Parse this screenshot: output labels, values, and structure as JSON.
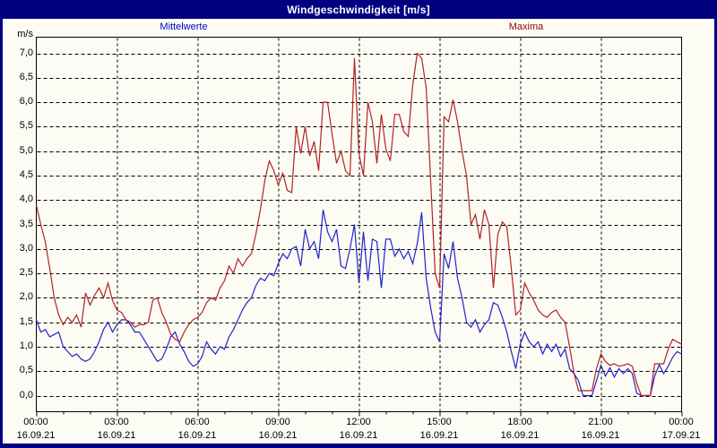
{
  "window": {
    "title": "Windgeschwindigkeit [m/s]"
  },
  "legend": {
    "mean_label": "Mittelwerte",
    "max_label": "Maxima"
  },
  "axis": {
    "unit_label": "m/s"
  },
  "colors": {
    "frame_navy": "#000080",
    "title_text": "#ffffff",
    "mean_label_text": "#0000cc",
    "max_label_text": "#990000",
    "mean_line": "#2222cc",
    "max_line": "#b22222",
    "grid": "#000000",
    "background": "#fcfcf4"
  },
  "chart_data": {
    "type": "line",
    "title": "Windgeschwindigkeit [m/s]",
    "ylabel": "m/s",
    "ylim": [
      0.0,
      7.0
    ],
    "y_tick_step": 0.5,
    "y_tick_labels": [
      "7,0",
      "6,5",
      "6,0",
      "5,5",
      "5,0",
      "4,5",
      "4,0",
      "3,5",
      "3,0",
      "2,5",
      "2,0",
      "1,5",
      "1,0",
      "0,5",
      "0,0"
    ],
    "x_start": "16.09.21 00:00",
    "x_end": "17.09.21 00:00",
    "sample_interval_minutes": 10,
    "grid": "dashed; horizontal every 0.5 m/s, vertical every 3 h, hourly minor ticks on x-axis",
    "legend_position": "top, outside plot",
    "x_ticks": [
      {
        "time": "00:00",
        "date": "16.09.21"
      },
      {
        "time": "03:00",
        "date": "16.09.21"
      },
      {
        "time": "06:00",
        "date": "16.09.21"
      },
      {
        "time": "09:00",
        "date": "16.09.21"
      },
      {
        "time": "12:00",
        "date": "16.09.21"
      },
      {
        "time": "15:00",
        "date": "16.09.21"
      },
      {
        "time": "18:00",
        "date": "16.09.21"
      },
      {
        "time": "21:00",
        "date": "16.09.21"
      },
      {
        "time": "00:00",
        "date": "17.09.21"
      }
    ],
    "series": [
      {
        "name": "Mittelwerte",
        "color": "#2222cc",
        "values": [
          1.55,
          1.3,
          1.35,
          1.2,
          1.25,
          1.3,
          1.0,
          0.9,
          0.8,
          0.85,
          0.75,
          0.7,
          0.75,
          0.9,
          1.1,
          1.35,
          1.5,
          1.3,
          1.45,
          1.55,
          1.55,
          1.45,
          1.3,
          1.3,
          1.15,
          1.0,
          0.85,
          0.7,
          0.75,
          0.95,
          1.2,
          1.3,
          1.05,
          0.9,
          0.7,
          0.6,
          0.65,
          0.8,
          1.1,
          0.95,
          0.85,
          1.0,
          0.95,
          1.2,
          1.35,
          1.55,
          1.75,
          1.9,
          2.0,
          2.25,
          2.4,
          2.35,
          2.5,
          2.45,
          2.7,
          2.9,
          2.8,
          3.0,
          3.05,
          2.65,
          3.4,
          3.0,
          3.15,
          2.8,
          3.8,
          3.35,
          3.15,
          3.4,
          2.65,
          2.6,
          3.0,
          3.5,
          2.3,
          3.35,
          2.35,
          3.2,
          3.15,
          2.2,
          3.2,
          3.2,
          2.85,
          3.0,
          2.8,
          2.95,
          2.7,
          3.1,
          3.75,
          2.4,
          1.8,
          1.3,
          1.1,
          2.9,
          2.6,
          3.15,
          2.4,
          2.0,
          1.5,
          1.4,
          1.55,
          1.3,
          1.45,
          1.55,
          1.9,
          1.85,
          1.6,
          1.3,
          0.9,
          0.55,
          1.05,
          1.3,
          1.1,
          1.0,
          1.1,
          0.85,
          1.05,
          0.9,
          1.05,
          0.8,
          0.95,
          0.55,
          0.45,
          0.3,
          0.0,
          0.0,
          0.0,
          0.3,
          0.62,
          0.4,
          0.57,
          0.38,
          0.55,
          0.45,
          0.55,
          0.45,
          0.05,
          0.0,
          0.0,
          0.0,
          0.4,
          0.63,
          0.45,
          0.6,
          0.78,
          0.9,
          0.85
        ]
      },
      {
        "name": "Maxima",
        "color": "#b22222",
        "values": [
          3.9,
          3.5,
          3.15,
          2.6,
          2.0,
          1.65,
          1.45,
          1.6,
          1.5,
          1.65,
          1.4,
          2.1,
          1.85,
          2.05,
          2.2,
          2.0,
          2.3,
          1.95,
          1.75,
          1.7,
          1.55,
          1.5,
          1.4,
          1.45,
          1.45,
          1.5,
          1.95,
          2.0,
          1.7,
          1.5,
          1.25,
          1.15,
          1.1,
          1.3,
          1.45,
          1.55,
          1.6,
          1.7,
          1.9,
          2.0,
          1.95,
          2.2,
          2.35,
          2.65,
          2.5,
          2.8,
          2.65,
          2.8,
          2.9,
          3.3,
          3.8,
          4.4,
          4.8,
          4.6,
          4.3,
          4.55,
          4.2,
          4.15,
          5.5,
          4.95,
          5.5,
          4.9,
          5.2,
          4.6,
          6.0,
          6.0,
          5.35,
          4.75,
          5.0,
          4.6,
          4.5,
          6.9,
          4.95,
          4.5,
          6.0,
          5.6,
          4.75,
          5.75,
          5.05,
          4.8,
          5.75,
          5.75,
          5.4,
          5.3,
          6.35,
          7.0,
          6.9,
          6.3,
          4.4,
          2.5,
          2.2,
          5.7,
          5.6,
          6.05,
          5.6,
          5.0,
          4.5,
          3.5,
          3.7,
          3.2,
          3.8,
          3.5,
          2.2,
          3.3,
          3.55,
          3.45,
          2.6,
          1.65,
          1.75,
          2.3,
          2.1,
          1.95,
          1.75,
          1.65,
          1.6,
          1.7,
          1.75,
          1.6,
          1.5,
          1.0,
          0.45,
          0.1,
          0.1,
          0.1,
          0.1,
          0.55,
          0.85,
          0.7,
          0.62,
          0.65,
          0.6,
          0.62,
          0.65,
          0.6,
          0.25,
          0.0,
          0.0,
          0.0,
          0.65,
          0.65,
          0.65,
          0.95,
          1.15,
          1.1,
          1.05
        ]
      }
    ]
  }
}
